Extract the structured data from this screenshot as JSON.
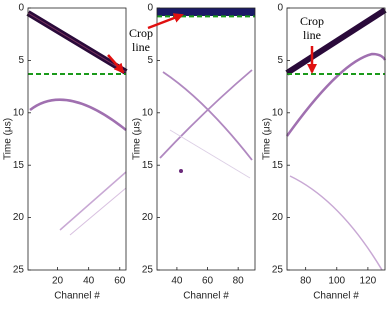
{
  "chart_data": [
    {
      "type": "image",
      "xlabel": "Channel #",
      "ylabel": "Time (μs)",
      "xlim": [
        1,
        64
      ],
      "ylim": [
        25,
        0
      ],
      "xticks": [
        20,
        40,
        60
      ],
      "yticks": [
        0,
        5,
        10,
        15,
        20,
        25
      ],
      "crop_line": 6.3,
      "crop_color": "#1a9a1a"
    },
    {
      "type": "image",
      "xlabel": "Channel #",
      "ylabel": "Time (μs)",
      "xlim": [
        27,
        91
      ],
      "ylim": [
        25,
        0
      ],
      "xticks": [
        40,
        60,
        80
      ],
      "yticks": [
        0,
        5,
        10,
        15,
        20,
        25
      ],
      "crop_line": 0.8,
      "crop_color": "#1a9a1a",
      "annotation": [
        "Crop",
        "line"
      ]
    },
    {
      "type": "image",
      "xlabel": "Channel #",
      "ylabel": "Time (μs)",
      "xlim": [
        68,
        131
      ],
      "ylim": [
        25,
        0
      ],
      "xticks": [
        80,
        100,
        120
      ],
      "yticks": [
        0,
        5,
        10,
        15,
        20,
        25
      ],
      "crop_line": 6.3,
      "crop_color": "#1a9a1a",
      "annotation": [
        "Crop",
        "line"
      ]
    }
  ]
}
